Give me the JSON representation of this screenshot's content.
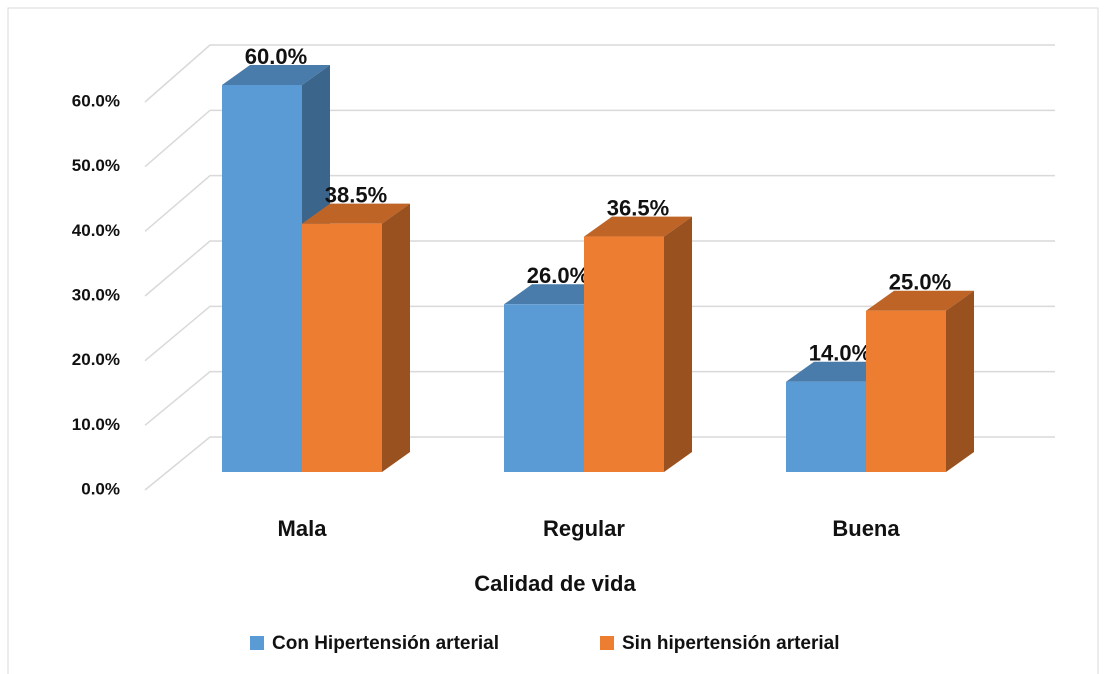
{
  "chart_data": {
    "type": "bar3d",
    "x_label": "Calidad de vida",
    "categories": [
      "Mala",
      "Regular",
      "Buena"
    ],
    "series": [
      {
        "name": "Con Hipertensión arterial",
        "color": "#5b9bd5",
        "values": [
          60,
          26,
          14
        ],
        "value_labels": [
          "60.0%",
          "26.0%",
          "14.0%"
        ]
      },
      {
        "name": "Sin hipertensión arterial",
        "color": "#ed7d31",
        "values": [
          38.5,
          36.5,
          25
        ],
        "value_labels": [
          "38.5%",
          "36.5%",
          "25.0%"
        ]
      }
    ],
    "ylim": [
      0,
      60
    ],
    "yticks": [
      {
        "value": 0,
        "label": "0.0%"
      },
      {
        "value": 10,
        "label": "10.0%"
      },
      {
        "value": 20,
        "label": "20.0%"
      },
      {
        "value": 30,
        "label": "30.0%"
      },
      {
        "value": 40,
        "label": "40.0%"
      },
      {
        "value": 50,
        "label": "50.0%"
      },
      {
        "value": 60,
        "label": "60.0%"
      }
    ],
    "grid": true,
    "legend": "bottom"
  }
}
